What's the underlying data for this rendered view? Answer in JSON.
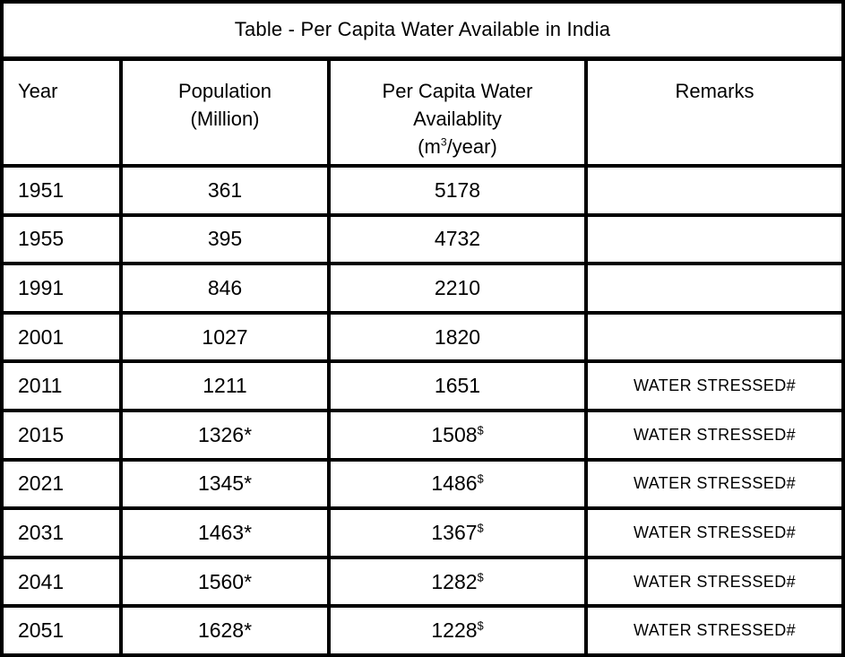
{
  "colors": {
    "border": "#000000",
    "background": "#ffffff",
    "text": "#000000"
  },
  "chart_data": {
    "type": "table",
    "title": "Table - Per Capita Water Available in India",
    "header": {
      "year": "Year",
      "population_line1": "Population",
      "population_line2": "(Million)",
      "per_capita_line1": "Per Capita Water",
      "per_capita_line2": "Availablity",
      "per_capita_unit_pre": "(m",
      "per_capita_unit_sup": "3",
      "per_capita_unit_post": "/year)",
      "remarks": "Remarks"
    },
    "rows": [
      {
        "year": "1951",
        "population": "361",
        "population_note": "",
        "per_capita": "5178",
        "per_capita_note": "",
        "remarks": ""
      },
      {
        "year": "1955",
        "population": "395",
        "population_note": "",
        "per_capita": "4732",
        "per_capita_note": "",
        "remarks": ""
      },
      {
        "year": "1991",
        "population": "846",
        "population_note": "",
        "per_capita": "2210",
        "per_capita_note": "",
        "remarks": ""
      },
      {
        "year": "2001",
        "population": "1027",
        "population_note": "",
        "per_capita": "1820",
        "per_capita_note": "",
        "remarks": ""
      },
      {
        "year": "2011",
        "population": "1211",
        "population_note": "",
        "per_capita": "1651",
        "per_capita_note": "",
        "remarks": "WATER STRESSED#"
      },
      {
        "year": "2015",
        "population": "1326",
        "population_note": "*",
        "per_capita": "1508",
        "per_capita_note": "$",
        "remarks": "WATER STRESSED#"
      },
      {
        "year": "2021",
        "population": "1345",
        "population_note": "*",
        "per_capita": "1486",
        "per_capita_note": "$",
        "remarks": "WATER STRESSED#"
      },
      {
        "year": "2031",
        "population": "1463",
        "population_note": "*",
        "per_capita": "1367",
        "per_capita_note": "$",
        "remarks": "WATER STRESSED#"
      },
      {
        "year": "2041",
        "population": "1560",
        "population_note": "*",
        "per_capita": "1282",
        "per_capita_note": "$",
        "remarks": "WATER STRESSED#"
      },
      {
        "year": "2051",
        "population": "1628",
        "population_note": "*",
        "per_capita": "1228",
        "per_capita_note": "$",
        "remarks": "WATER STRESSED#"
      }
    ]
  }
}
